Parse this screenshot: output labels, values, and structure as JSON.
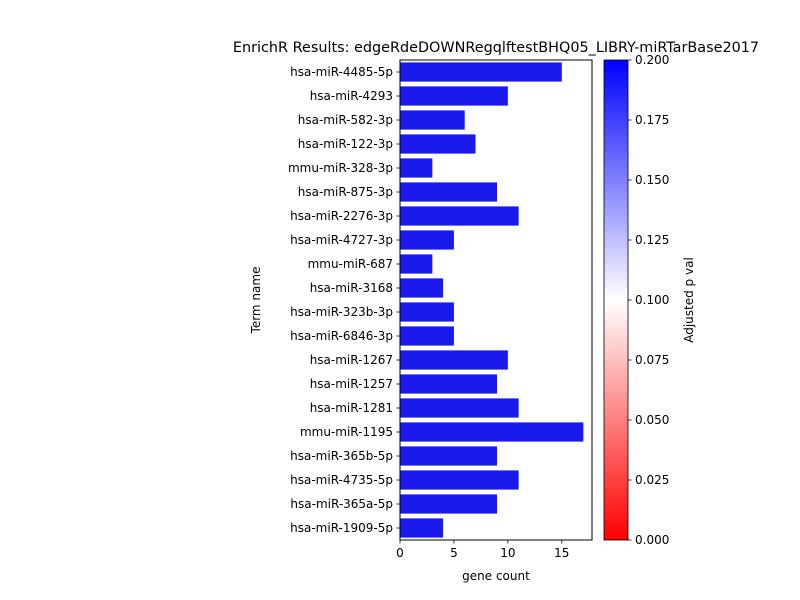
{
  "chart_data": {
    "type": "bar",
    "orientation": "horizontal",
    "title": "EnrichR Results: edgeRdeDOWNRegqlftestBHQ05_LIBRY-miRTarBase2017",
    "xlabel": "gene count",
    "ylabel": "Term name",
    "xlim": [
      0,
      17.8
    ],
    "xticks": [
      0,
      5,
      10,
      15
    ],
    "xtick_labels": [
      "0",
      "5",
      "10",
      "15"
    ],
    "grid": false,
    "categories": [
      "hsa-miR-4485-5p",
      "hsa-miR-4293",
      "hsa-miR-582-3p",
      "hsa-miR-122-3p",
      "mmu-miR-328-3p",
      "hsa-miR-875-3p",
      "hsa-miR-2276-3p",
      "hsa-miR-4727-3p",
      "mmu-miR-687",
      "hsa-miR-3168",
      "hsa-miR-323b-3p",
      "hsa-miR-6846-3p",
      "hsa-miR-1267",
      "hsa-miR-1257",
      "hsa-miR-1281",
      "mmu-miR-1195",
      "hsa-miR-365b-5p",
      "hsa-miR-4735-5p",
      "hsa-miR-365a-5p",
      "hsa-miR-1909-5p"
    ],
    "values": [
      15,
      10,
      6,
      7,
      3,
      9,
      11,
      5,
      3,
      4,
      5,
      5,
      10,
      9,
      11,
      17,
      9,
      11,
      9,
      4
    ],
    "bar_color": "#1a1aec",
    "colorbar": {
      "label": "Adjusted p val",
      "min": 0.0,
      "max": 0.2,
      "colormap": [
        "#ff0000",
        "#ffffff",
        "#0000ff"
      ],
      "ticks": [
        0.0,
        0.025,
        0.05,
        0.075,
        0.1,
        0.125,
        0.15,
        0.175,
        0.2
      ],
      "tick_labels": [
        "0.000",
        "0.025",
        "0.050",
        "0.075",
        "0.100",
        "0.125",
        "0.150",
        "0.175",
        "0.200"
      ]
    }
  }
}
